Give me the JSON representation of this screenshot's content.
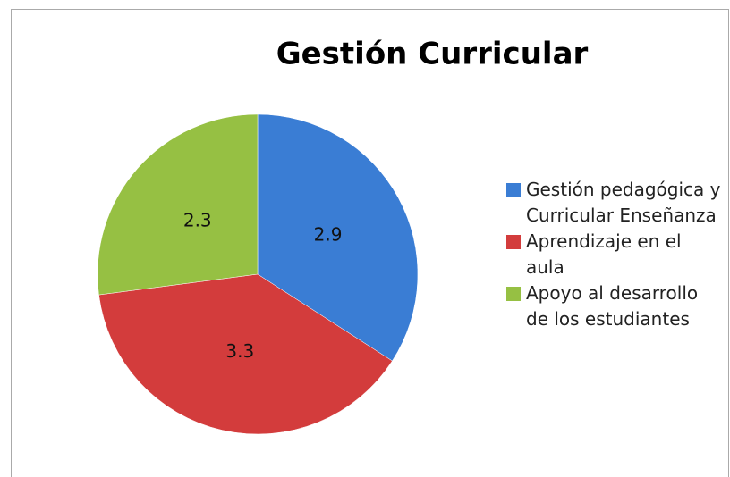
{
  "chart_data": {
    "type": "pie",
    "title": "Gestión Curricular",
    "categories": [
      "Gestión pedagógica y Curricular Enseñanza",
      "Aprendizaje en el aula",
      "Apoyo al desarrollo de los estudiantes"
    ],
    "values": [
      2.9,
      3.3,
      2.3
    ],
    "colors": [
      "#3a7dd4",
      "#d33c3c",
      "#96c043"
    ]
  }
}
